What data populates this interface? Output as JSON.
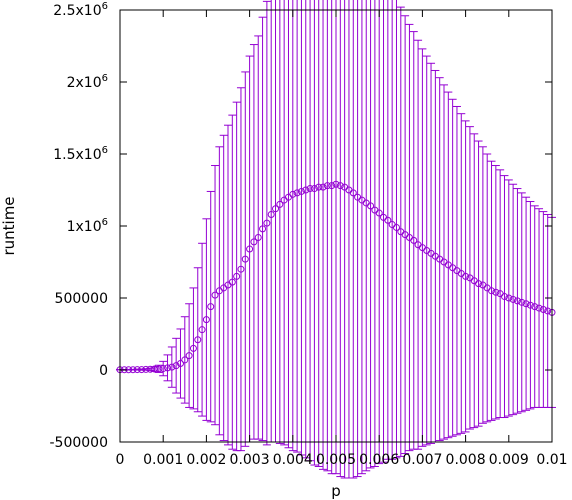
{
  "chart_data": {
    "type": "scatter",
    "title": "",
    "xlabel": "p",
    "ylabel": "runtime",
    "xlim": [
      0,
      0.01
    ],
    "ylim": [
      -500000,
      2500000
    ],
    "grid": false,
    "legend": "none",
    "colors": {
      "series": "#9400d3",
      "axis": "#000000"
    },
    "x_ticks": [
      {
        "value": 0,
        "label": "0"
      },
      {
        "value": 0.001,
        "label": "0.001"
      },
      {
        "value": 0.002,
        "label": "0.002"
      },
      {
        "value": 0.003,
        "label": "0.003"
      },
      {
        "value": 0.004,
        "label": "0.004"
      },
      {
        "value": 0.005,
        "label": "0.005"
      },
      {
        "value": 0.006,
        "label": "0.006"
      },
      {
        "value": 0.007,
        "label": "0.007"
      },
      {
        "value": 0.008,
        "label": "0.008"
      },
      {
        "value": 0.009,
        "label": "0.009"
      },
      {
        "value": 0.01,
        "label": "0.01"
      }
    ],
    "y_ticks": [
      {
        "value": -500000,
        "label": "-500000"
      },
      {
        "value": 0,
        "label": "0"
      },
      {
        "value": 500000,
        "label": "500000"
      },
      {
        "value": 1000000,
        "label": "1x10",
        "exp": "6"
      },
      {
        "value": 1500000,
        "label": "1.5x10",
        "exp": "6"
      },
      {
        "value": 2000000,
        "label": "2x10",
        "exp": "6"
      },
      {
        "value": 2500000,
        "label": "2.5x10",
        "exp": "6"
      }
    ],
    "series": [
      {
        "x": [
          0,
          0.0001,
          0.0002,
          0.0003,
          0.0004,
          0.0005,
          0.0006,
          0.0007,
          0.0008,
          0.0009,
          0.001,
          0.0011,
          0.0012,
          0.0013,
          0.0014,
          0.0015,
          0.0016,
          0.0017,
          0.0018,
          0.0019,
          0.002,
          0.0021,
          0.0022,
          0.0023,
          0.0024,
          0.0025,
          0.0026,
          0.0027,
          0.0028,
          0.0029,
          0.003,
          0.0031,
          0.0032,
          0.0033,
          0.0034,
          0.0035,
          0.0036,
          0.0037,
          0.0038,
          0.0039,
          0.004,
          0.0041,
          0.0042,
          0.0043,
          0.0044,
          0.0045,
          0.0046,
          0.0047,
          0.0048,
          0.0049,
          0.005,
          0.0051,
          0.0052,
          0.0053,
          0.0054,
          0.0055,
          0.0056,
          0.0057,
          0.0058,
          0.0059,
          0.006,
          0.0061,
          0.0062,
          0.0063,
          0.0064,
          0.0065,
          0.0066,
          0.0067,
          0.0068,
          0.0069,
          0.007,
          0.0071,
          0.0072,
          0.0073,
          0.0074,
          0.0075,
          0.0076,
          0.0077,
          0.0078,
          0.0079,
          0.008,
          0.0081,
          0.0082,
          0.0083,
          0.0084,
          0.0085,
          0.0086,
          0.0087,
          0.0088,
          0.0089,
          0.009,
          0.0091,
          0.0092,
          0.0093,
          0.0094,
          0.0095,
          0.0096,
          0.0097,
          0.0098,
          0.0099,
          0.01
        ],
        "y": [
          2000,
          2000,
          2000,
          2000,
          3000,
          3000,
          4000,
          5000,
          7000,
          8000,
          10000,
          15000,
          20000,
          30000,
          45000,
          70000,
          100000,
          150000,
          210000,
          280000,
          350000,
          440000,
          520000,
          550000,
          570000,
          590000,
          610000,
          650000,
          700000,
          770000,
          840000,
          890000,
          920000,
          980000,
          1020000,
          1080000,
          1120000,
          1150000,
          1180000,
          1200000,
          1220000,
          1230000,
          1240000,
          1250000,
          1260000,
          1260000,
          1270000,
          1270000,
          1280000,
          1280000,
          1290000,
          1280000,
          1270000,
          1250000,
          1230000,
          1200000,
          1180000,
          1160000,
          1140000,
          1110000,
          1090000,
          1060000,
          1040000,
          1010000,
          990000,
          960000,
          940000,
          920000,
          900000,
          870000,
          850000,
          830000,
          810000,
          790000,
          770000,
          750000,
          730000,
          710000,
          690000,
          670000,
          650000,
          640000,
          620000,
          600000,
          590000,
          570000,
          550000,
          540000,
          530000,
          510000,
          500000,
          490000,
          480000,
          470000,
          460000,
          450000,
          440000,
          430000,
          420000,
          410000,
          400000
        ],
        "err": [
          1000,
          1000,
          2000,
          2000,
          3000,
          4000,
          5000,
          8000,
          15000,
          25000,
          50000,
          90000,
          140000,
          190000,
          240000,
          300000,
          360000,
          420000,
          500000,
          600000,
          700000,
          800000,
          900000,
          1000000,
          1060000,
          1110000,
          1160000,
          1210000,
          1260000,
          1300000,
          1340000,
          1370000,
          1400000,
          1470000,
          1540000,
          1580000,
          1620000,
          1660000,
          1700000,
          1740000,
          1780000,
          1800000,
          1830000,
          1860000,
          1890000,
          1920000,
          1940000,
          1960000,
          1980000,
          2000000,
          2010000,
          2020000,
          2020000,
          2000000,
          1980000,
          1940000,
          1900000,
          1860000,
          1820000,
          1780000,
          1740000,
          1700000,
          1660000,
          1630000,
          1600000,
          1560000,
          1520000,
          1480000,
          1450000,
          1420000,
          1380000,
          1350000,
          1320000,
          1290000,
          1260000,
          1230000,
          1200000,
          1170000,
          1140000,
          1110000,
          1080000,
          1050000,
          1020000,
          990000,
          960000,
          930000,
          900000,
          880000,
          860000,
          840000,
          820000,
          800000,
          780000,
          760000,
          740000,
          720000,
          700000,
          690000,
          680000,
          670000,
          660000
        ]
      }
    ]
  }
}
